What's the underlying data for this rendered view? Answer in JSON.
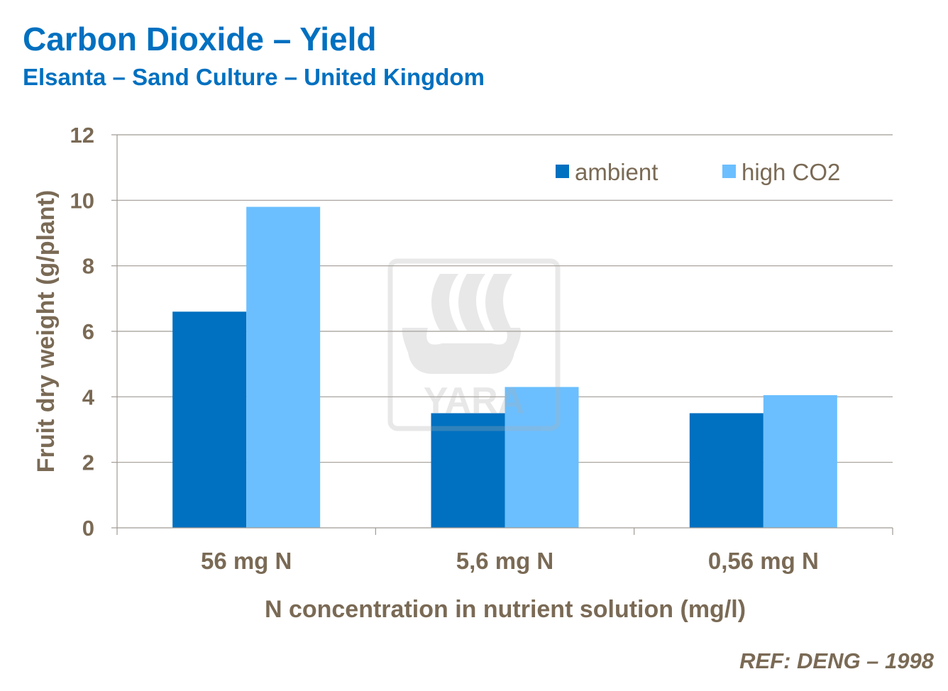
{
  "title": "Carbon Dioxide – Yield",
  "subtitle": "Elsanta – Sand Culture – United Kingdom",
  "reference": "REF: DENG – 1998",
  "watermark": "YARA",
  "chart_data": {
    "type": "bar",
    "categories": [
      "56 mg N",
      "5,6 mg N",
      "0,56 mg N"
    ],
    "series": [
      {
        "name": "ambient",
        "color": "#0070C0",
        "values": [
          6.6,
          3.5,
          3.5
        ]
      },
      {
        "name": "high CO2",
        "color": "#6BBFFF",
        "values": [
          9.8,
          4.3,
          4.05
        ]
      }
    ],
    "xlabel": "N concentration in nutrient solution (mg/l)",
    "ylabel": "Fruit dry weight (g/plant)",
    "ylim": [
      0,
      12
    ],
    "yticks": [
      0,
      2,
      4,
      6,
      8,
      10,
      12
    ],
    "grid": true,
    "legend": "top-right",
    "text_color": "#7A6A55"
  }
}
